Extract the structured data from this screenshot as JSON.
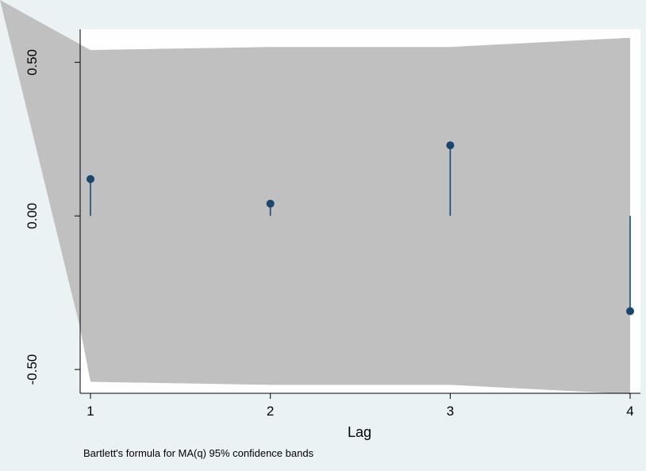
{
  "chart_data": {
    "type": "scatter",
    "subtype": "correlogram",
    "title": "",
    "xlabel": "Lag",
    "ylabel": "",
    "x": [
      1,
      2,
      3,
      4
    ],
    "series": [
      {
        "values": [
          0.12,
          0.04,
          0.23,
          -0.31
        ]
      }
    ],
    "confidence_band": {
      "upper": [
        0.54,
        0.55,
        0.55,
        0.58
      ],
      "lower": [
        -0.54,
        -0.55,
        -0.55,
        -0.58
      ],
      "color": "#c0c0c0"
    },
    "xlim": [
      1,
      4
    ],
    "ylim": [
      -0.58,
      0.61
    ],
    "xticks": [
      1,
      2,
      3,
      4
    ],
    "yticks": [
      -0.5,
      0,
      0.5
    ],
    "ytick_labels": [
      "-0.50",
      "0.00",
      "0.50"
    ],
    "note": "Bartlett's formula for MA(q) 95% confidence bands",
    "grid": false,
    "colors": {
      "background": "#eaf2f3",
      "plot_area": "#ffffff",
      "marker": "#1a476f",
      "band": "#c0c0c0",
      "axis": "#000000"
    }
  }
}
